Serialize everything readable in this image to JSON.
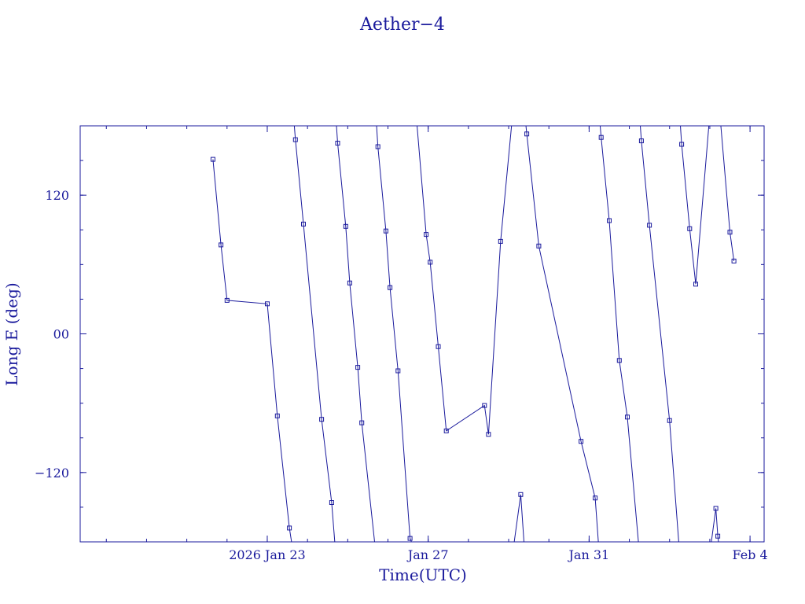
{
  "chart_data": {
    "type": "line",
    "title": "Aether−4",
    "xlabel": "Time(UTC)",
    "ylabel": "Long E (deg)",
    "xlim": [
      -4.65,
      12.35
    ],
    "ylim": [
      -180,
      180
    ],
    "x_reference_date": "2026-01-23",
    "x_ticks": [
      {
        "value": 0,
        "label": "2026 Jan 23"
      },
      {
        "value": 4,
        "label": "Jan 27"
      },
      {
        "value": 8,
        "label": "Jan 31"
      },
      {
        "value": 12,
        "label": "Feb  4"
      }
    ],
    "x_minor_step": 1,
    "y_ticks": [
      {
        "value": 120,
        "label": "120"
      },
      {
        "value": 0,
        "label": "00"
      },
      {
        "value": -120,
        "label": "−120"
      }
    ],
    "y_minor_step": 30,
    "grid": false,
    "segments": [
      [
        [
          -1.35,
          151
        ],
        [
          -1.15,
          77
        ],
        [
          -1.0,
          29
        ],
        [
          0.0,
          26
        ],
        [
          0.25,
          -71
        ],
        [
          0.55,
          -168
        ],
        [
          0.65,
          -190
        ]
      ],
      [
        [
          0.65,
          190
        ],
        [
          0.7,
          168
        ],
        [
          0.9,
          95
        ],
        [
          1.35,
          -74
        ],
        [
          1.6,
          -146
        ],
        [
          1.7,
          -190
        ]
      ],
      [
        [
          1.7,
          190
        ],
        [
          1.75,
          165
        ],
        [
          1.95,
          93
        ],
        [
          2.05,
          44
        ],
        [
          2.25,
          -29
        ],
        [
          2.35,
          -77
        ],
        [
          2.7,
          -190
        ]
      ],
      [
        [
          2.7,
          190
        ],
        [
          2.75,
          162
        ],
        [
          2.95,
          89
        ],
        [
          3.05,
          40
        ],
        [
          3.25,
          -32
        ],
        [
          3.55,
          -177
        ],
        [
          3.7,
          -190
        ]
      ],
      [
        [
          3.7,
          190
        ],
        [
          3.95,
          86
        ],
        [
          4.05,
          62
        ],
        [
          4.25,
          -11
        ],
        [
          4.45,
          -84
        ],
        [
          5.4,
          -62
        ],
        [
          5.5,
          -87
        ],
        [
          5.8,
          80
        ],
        [
          6.1,
          190
        ]
      ],
      [
        [
          6.1,
          -190
        ],
        [
          6.3,
          -139
        ],
        [
          6.4,
          -190
        ]
      ],
      [
        [
          6.4,
          190
        ],
        [
          6.45,
          173
        ],
        [
          6.75,
          76
        ],
        [
          7.8,
          -93
        ],
        [
          8.15,
          -142
        ],
        [
          8.25,
          -190
        ]
      ],
      [
        [
          8.25,
          190
        ],
        [
          8.3,
          170
        ],
        [
          8.5,
          98
        ],
        [
          8.75,
          -23
        ],
        [
          8.95,
          -72
        ],
        [
          9.25,
          -190
        ]
      ],
      [
        [
          9.25,
          190
        ],
        [
          9.3,
          167
        ],
        [
          9.5,
          94
        ],
        [
          10.0,
          -75
        ],
        [
          10.25,
          -190
        ]
      ],
      [
        [
          10.25,
          190
        ],
        [
          10.3,
          164
        ],
        [
          10.5,
          91
        ],
        [
          10.65,
          43
        ],
        [
          11.0,
          190
        ]
      ],
      [
        [
          11.0,
          -190
        ],
        [
          11.15,
          -151
        ],
        [
          11.2,
          -175
        ],
        [
          11.25,
          -190
        ]
      ],
      [
        [
          11.25,
          190
        ],
        [
          11.5,
          88
        ],
        [
          11.6,
          63
        ]
      ]
    ],
    "markers": [
      [
        -1.35,
        151
      ],
      [
        -1.15,
        77
      ],
      [
        -1.0,
        29
      ],
      [
        0.0,
        26
      ],
      [
        0.25,
        -71
      ],
      [
        0.55,
        -168
      ],
      [
        0.7,
        168
      ],
      [
        0.9,
        95
      ],
      [
        1.35,
        -74
      ],
      [
        1.6,
        -146
      ],
      [
        1.75,
        165
      ],
      [
        1.95,
        93
      ],
      [
        2.05,
        44
      ],
      [
        2.25,
        -29
      ],
      [
        2.35,
        -77
      ],
      [
        2.75,
        162
      ],
      [
        2.95,
        89
      ],
      [
        3.05,
        40
      ],
      [
        3.25,
        -32
      ],
      [
        3.55,
        -177
      ],
      [
        3.95,
        86
      ],
      [
        4.05,
        62
      ],
      [
        4.25,
        -11
      ],
      [
        4.45,
        -84
      ],
      [
        5.4,
        -62
      ],
      [
        5.5,
        -87
      ],
      [
        5.8,
        80
      ],
      [
        6.3,
        -139
      ],
      [
        6.45,
        173
      ],
      [
        6.75,
        76
      ],
      [
        7.8,
        -93
      ],
      [
        8.15,
        -142
      ],
      [
        8.3,
        170
      ],
      [
        8.5,
        98
      ],
      [
        8.75,
        -23
      ],
      [
        8.95,
        -72
      ],
      [
        9.3,
        167
      ],
      [
        9.5,
        94
      ],
      [
        10.0,
        -75
      ],
      [
        10.3,
        164
      ],
      [
        10.5,
        91
      ],
      [
        10.65,
        43
      ],
      [
        11.15,
        -151
      ],
      [
        11.2,
        -175
      ],
      [
        11.5,
        88
      ],
      [
        11.6,
        63
      ]
    ]
  }
}
